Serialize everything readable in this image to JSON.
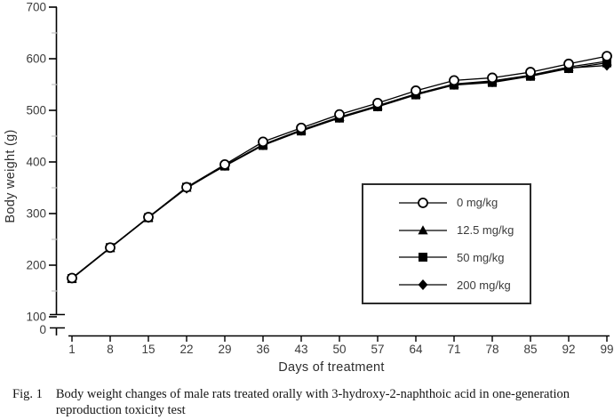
{
  "figure": {
    "caption_label": "Fig. 1",
    "caption_text": "Body weight changes of male rats treated orally with 3-hydroxy-2-naphthoic acid in one-generation reproduction toxicity test"
  },
  "chart_data": {
    "type": "line",
    "title": "",
    "xlabel": "Days of treatment",
    "ylabel": "Body weight (g)",
    "x": [
      1,
      8,
      15,
      22,
      29,
      36,
      43,
      50,
      57,
      64,
      71,
      78,
      85,
      92,
      99
    ],
    "x_ticks": [
      1,
      8,
      15,
      22,
      29,
      36,
      43,
      50,
      57,
      64,
      71,
      78,
      85,
      92,
      99
    ],
    "y_ticks": [
      0,
      100,
      200,
      300,
      400,
      500,
      600,
      700
    ],
    "y_minor_tick_step": 50,
    "ylim": [
      0,
      700
    ],
    "y_axis_break": "axis broken between 0 and 100",
    "grid": false,
    "legend_position": "boxed, inside lower-right of plot",
    "series": [
      {
        "name": "0 mg/kg",
        "marker": "circle",
        "fill": "open",
        "values": [
          175,
          234,
          293,
          351,
          395,
          439,
          466,
          492,
          514,
          538,
          558,
          563,
          574,
          590,
          605
        ]
      },
      {
        "name": "12.5 mg/kg",
        "marker": "triangle",
        "fill": "solid",
        "values": [
          174,
          233,
          292,
          350,
          393,
          434,
          462,
          487,
          509,
          532,
          551,
          557,
          568,
          584,
          595
        ]
      },
      {
        "name": "50 mg/kg",
        "marker": "square",
        "fill": "solid",
        "values": [
          174,
          234,
          292,
          351,
          392,
          432,
          460,
          485,
          507,
          530,
          549,
          554,
          566,
          581,
          592
        ]
      },
      {
        "name": "200 mg/kg",
        "marker": "diamond",
        "fill": "solid",
        "values": [
          175,
          234,
          292,
          349,
          393,
          433,
          461,
          486,
          508,
          531,
          550,
          555,
          567,
          582,
          587
        ]
      }
    ],
    "colors": {
      "line": "#000000",
      "marker_fill": "#000000",
      "open_marker_fill": "#ffffff",
      "minor_tick": "#c3c3c3",
      "tick_text": "#3b3b3b"
    }
  }
}
